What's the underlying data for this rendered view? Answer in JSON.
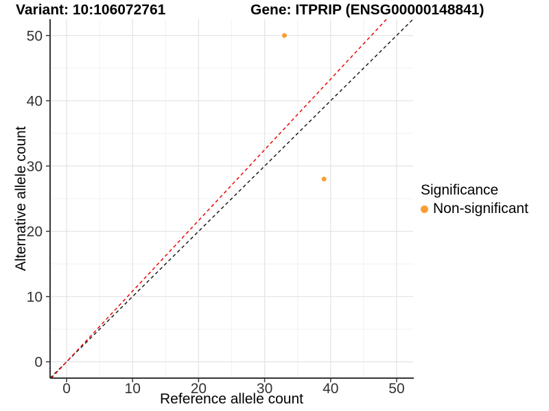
{
  "chart_data": {
    "type": "scatter",
    "title_left": "Variant: 10:106072761",
    "title_right": "Gene: ITPRIP (ENSG00000148841)",
    "xlabel": "Reference allele count",
    "ylabel": "Alternative allele count",
    "xlim": [
      -2.5,
      52.5
    ],
    "ylim": [
      -2.5,
      52.5
    ],
    "x_ticks": [
      0,
      10,
      20,
      30,
      40,
      50
    ],
    "y_ticks": [
      0,
      10,
      20,
      30,
      40,
      50
    ],
    "x_minor": [
      5,
      15,
      25,
      35,
      45
    ],
    "y_minor": [
      5,
      15,
      25,
      35,
      45
    ],
    "grid": "major+minor",
    "points": [
      {
        "x": 33,
        "y": 50,
        "series": "Non-significant"
      },
      {
        "x": 39,
        "y": 28,
        "series": "Non-significant"
      }
    ],
    "lines": [
      {
        "name": "identity",
        "slope": 1.0,
        "intercept": 0,
        "color": "#1a1a1a",
        "style": "dashed"
      },
      {
        "name": "allelic-ratio",
        "slope": 1.083,
        "intercept": 0,
        "color": "#ee0000",
        "style": "dashed"
      }
    ],
    "legend": {
      "title": "Significance",
      "position": "right",
      "entries": [
        {
          "label": "Non-significant",
          "color": "#fb9e32"
        }
      ]
    },
    "colors": {
      "point": "#fb9e32",
      "grid_major": "#e4e4e4",
      "grid_minor": "#f1f1f1",
      "axis_line": "#333333",
      "tick_text": "#303030"
    }
  }
}
